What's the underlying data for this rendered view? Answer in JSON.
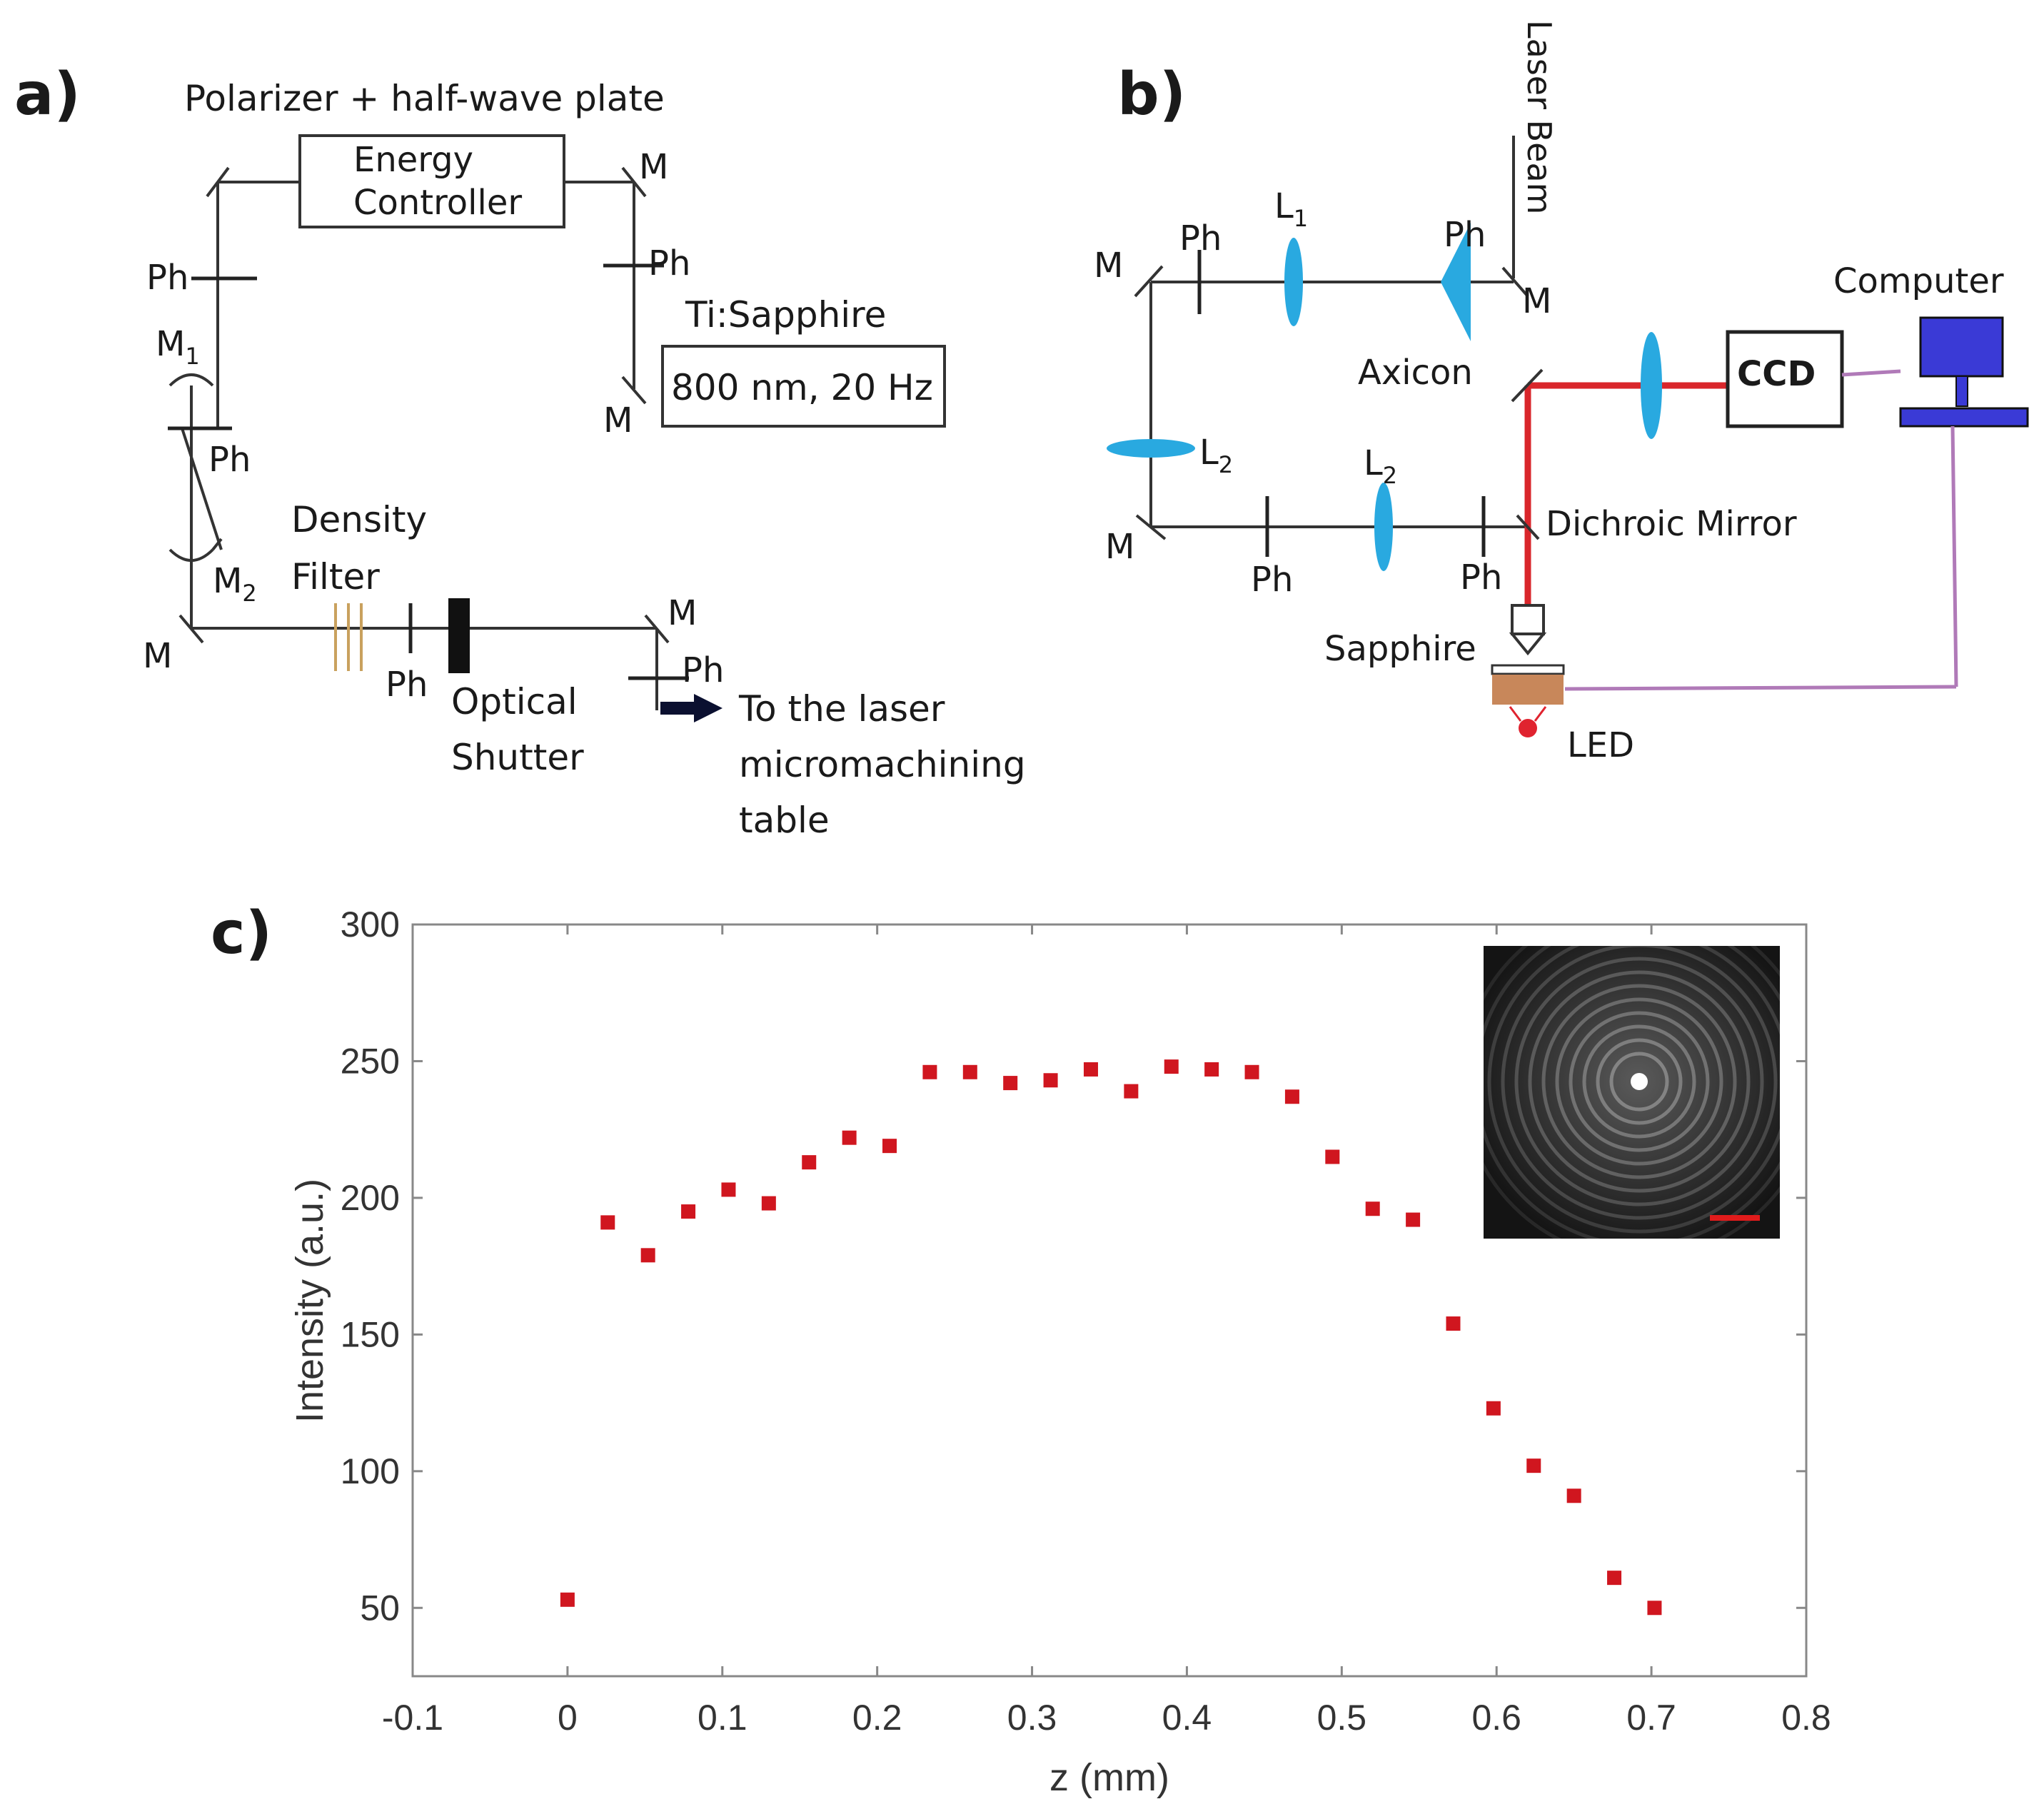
{
  "panel_a": {
    "label": "a)",
    "polarizer_label": "Polarizer + half-wave plate",
    "energy_controller_line1": "Energy",
    "energy_controller_line2": "Controller",
    "laser_name": "Ti:Sapphire",
    "laser_spec": "800 nm, 20 Hz",
    "density_filter_line1": "Density",
    "density_filter_line2": "Filter",
    "shutter_line1": "Optical",
    "shutter_line2": "Shutter",
    "output_line1": "To the laser",
    "output_line2": "micromachining",
    "output_line3": "table",
    "mirror": "M",
    "m_base": "M",
    "m1_sub": "1",
    "m2_sub": "2",
    "pinhole": "Ph"
  },
  "panel_b": {
    "label": "b)",
    "laser_beam": "Laser Beam",
    "computer": "Computer",
    "ccd": "CCD",
    "axicon": "Axicon",
    "dichroic": "Dichroic Mirror",
    "sapphire": "Sapphire",
    "led": "LED",
    "mirror": "M",
    "pinhole": "Ph",
    "lens_base": "L",
    "l1_sub": "1",
    "l2_sub": "2",
    "colors": {
      "lens": "#29a9e0",
      "beam": "#d9262b",
      "computer": "#3a3ad6",
      "cable": "#b07ab8",
      "sapphire": "#c8875a",
      "led": "#e0232f"
    }
  },
  "panel_c": {
    "label": "c)"
  },
  "chart_data": {
    "type": "scatter",
    "xlabel": "z (mm)",
    "ylabel": "Intensity (a.u.)",
    "xlim": [
      -0.1,
      0.8
    ],
    "ylim": [
      25,
      300
    ],
    "xticks": [
      -0.1,
      0,
      0.1,
      0.2,
      0.3,
      0.4,
      0.5,
      0.6,
      0.7,
      0.8
    ],
    "xtick_labels": [
      "-0.1",
      "0",
      "0.1",
      "0.2",
      "0.3",
      "0.4",
      "0.5",
      "0.6",
      "0.7",
      "0.8"
    ],
    "yticks": [
      50,
      100,
      150,
      200,
      250,
      300
    ],
    "ytick_labels": [
      "50",
      "100",
      "150",
      "200",
      "250",
      "300"
    ],
    "marker_color": "#d0161f",
    "series": [
      {
        "x": [
          0,
          0.026,
          0.052,
          0.078,
          0.104,
          0.13,
          0.156,
          0.182,
          0.208,
          0.234,
          0.26,
          0.286,
          0.312,
          0.338,
          0.364,
          0.39,
          0.416,
          0.442,
          0.468,
          0.494,
          0.52,
          0.546,
          0.572,
          0.598,
          0.624,
          0.65,
          0.676,
          0.702
        ],
        "y": [
          53,
          191,
          179,
          195,
          203,
          198,
          213,
          222,
          219,
          246,
          246,
          242,
          243,
          247,
          239,
          248,
          247,
          246,
          237,
          215,
          196,
          192,
          154,
          123,
          102,
          91,
          61,
          50
        ]
      }
    ],
    "grid": false,
    "inset": "speckle-rings microscope image with red scale bar"
  }
}
